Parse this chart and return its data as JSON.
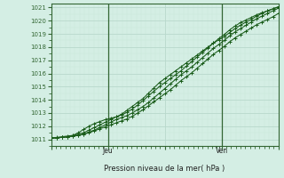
{
  "xlabel": "Pression niveau de la mer( hPa )",
  "ylim": [
    1011,
    1021
  ],
  "xlim": [
    0,
    96
  ],
  "yticks": [
    1011,
    1012,
    1013,
    1014,
    1015,
    1016,
    1017,
    1018,
    1019,
    1020,
    1021
  ],
  "day_labels": [
    {
      "label": "Jeu",
      "x": 24
    },
    {
      "label": "Ven",
      "x": 72
    }
  ],
  "day_vlines": [
    24,
    72
  ],
  "bg_color": "#d4eee4",
  "grid_major_color": "#b8d8cc",
  "grid_minor_color": "#c8e8d8",
  "line_color": "#1a5c1a",
  "series": [
    [
      1011.1,
      1011.15,
      1011.2,
      1011.25,
      1011.3,
      1011.4,
      1011.5,
      1011.7,
      1011.9,
      1012.1,
      1012.3,
      1012.5,
      1012.7,
      1012.9,
      1013.2,
      1013.5,
      1013.8,
      1014.1,
      1014.5,
      1014.9,
      1015.3,
      1015.6,
      1015.9,
      1016.2,
      1016.5,
      1016.8,
      1017.1,
      1017.4,
      1017.7,
      1018.0,
      1018.3,
      1018.55,
      1018.8,
      1019.1,
      1019.4,
      1019.65,
      1019.9,
      1020.1,
      1020.35,
      1020.55,
      1020.75,
      1020.9,
      1021.05
    ],
    [
      1011.1,
      1011.12,
      1011.15,
      1011.2,
      1011.25,
      1011.3,
      1011.4,
      1011.5,
      1011.65,
      1011.8,
      1011.95,
      1012.1,
      1012.25,
      1012.4,
      1012.55,
      1012.75,
      1013.0,
      1013.25,
      1013.55,
      1013.85,
      1014.15,
      1014.45,
      1014.75,
      1015.1,
      1015.45,
      1015.75,
      1016.05,
      1016.4,
      1016.75,
      1017.1,
      1017.45,
      1017.75,
      1018.05,
      1018.4,
      1018.7,
      1018.95,
      1019.2,
      1019.45,
      1019.7,
      1019.9,
      1020.1,
      1020.3,
      1020.55
    ],
    [
      1011.1,
      1011.12,
      1011.15,
      1011.2,
      1011.3,
      1011.5,
      1011.75,
      1012.0,
      1012.2,
      1012.35,
      1012.5,
      1012.6,
      1012.7,
      1012.85,
      1013.05,
      1013.3,
      1013.6,
      1013.95,
      1014.3,
      1014.65,
      1015.0,
      1015.3,
      1015.6,
      1015.9,
      1016.2,
      1016.55,
      1016.9,
      1017.25,
      1017.6,
      1017.95,
      1018.3,
      1018.65,
      1018.95,
      1019.3,
      1019.6,
      1019.85,
      1020.05,
      1020.25,
      1020.45,
      1020.6,
      1020.75,
      1020.9,
      1021.05
    ],
    [
      1011.1,
      1011.12,
      1011.15,
      1011.2,
      1011.25,
      1011.3,
      1011.4,
      1011.55,
      1011.7,
      1011.9,
      1012.1,
      1012.3,
      1012.5,
      1012.65,
      1012.8,
      1013.0,
      1013.25,
      1013.5,
      1013.8,
      1014.15,
      1014.5,
      1014.85,
      1015.2,
      1015.55,
      1015.9,
      1016.2,
      1016.5,
      1016.85,
      1017.2,
      1017.55,
      1017.9,
      1018.2,
      1018.5,
      1018.85,
      1019.15,
      1019.4,
      1019.65,
      1019.9,
      1020.15,
      1020.35,
      1020.55,
      1020.75,
      1020.95
    ]
  ]
}
